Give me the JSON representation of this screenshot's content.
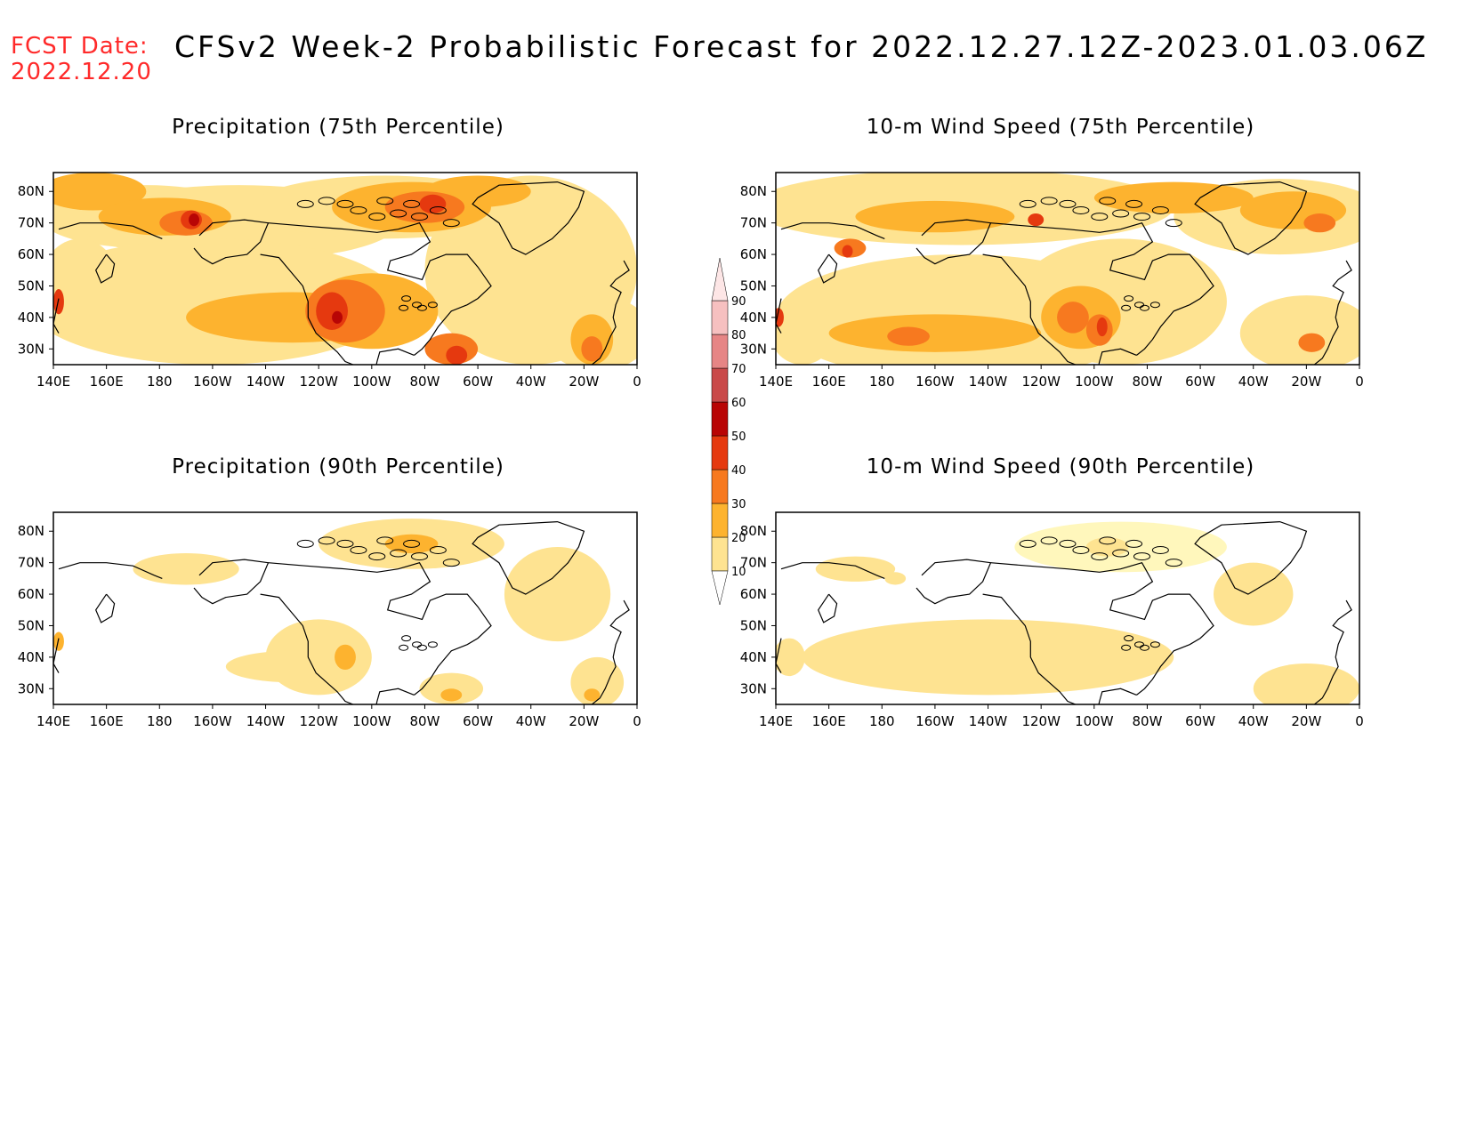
{
  "header": {
    "fcst_label": "FCST Date:",
    "fcst_date": "2022.12.20",
    "title": "CFSv2 Week-2 Probabilistic Forecast for 2022.12.27.12Z-2023.01.03.06Z"
  },
  "map_axes": {
    "lon_labels": [
      "140E",
      "160E",
      "180",
      "160W",
      "140W",
      "120W",
      "100W",
      "80W",
      "60W",
      "40W",
      "20W",
      "0"
    ],
    "lat_labels": [
      "80N",
      "70N",
      "60N",
      "50N",
      "40N",
      "30N"
    ]
  },
  "panels": [
    {
      "id": "precip-75",
      "title": "Precipitation (75th Percentile)"
    },
    {
      "id": "wind-75",
      "title": "10-m Wind Speed (75th Percentile)"
    },
    {
      "id": "precip-90",
      "title": "Precipitation (90th Percentile)"
    },
    {
      "id": "wind-90",
      "title": "10-m Wind Speed (90th Percentile)"
    }
  ],
  "colorbar": {
    "levels": [
      "10",
      "20",
      "30",
      "40",
      "50",
      "60",
      "70",
      "80",
      "90"
    ],
    "colors": [
      "#fff7bc",
      "#fee391",
      "#fdb32f",
      "#f7791f",
      "#e5390f",
      "#b80505",
      "#c94a4a",
      "#e68585",
      "#f6c0c0",
      "#fde6e6"
    ]
  }
}
